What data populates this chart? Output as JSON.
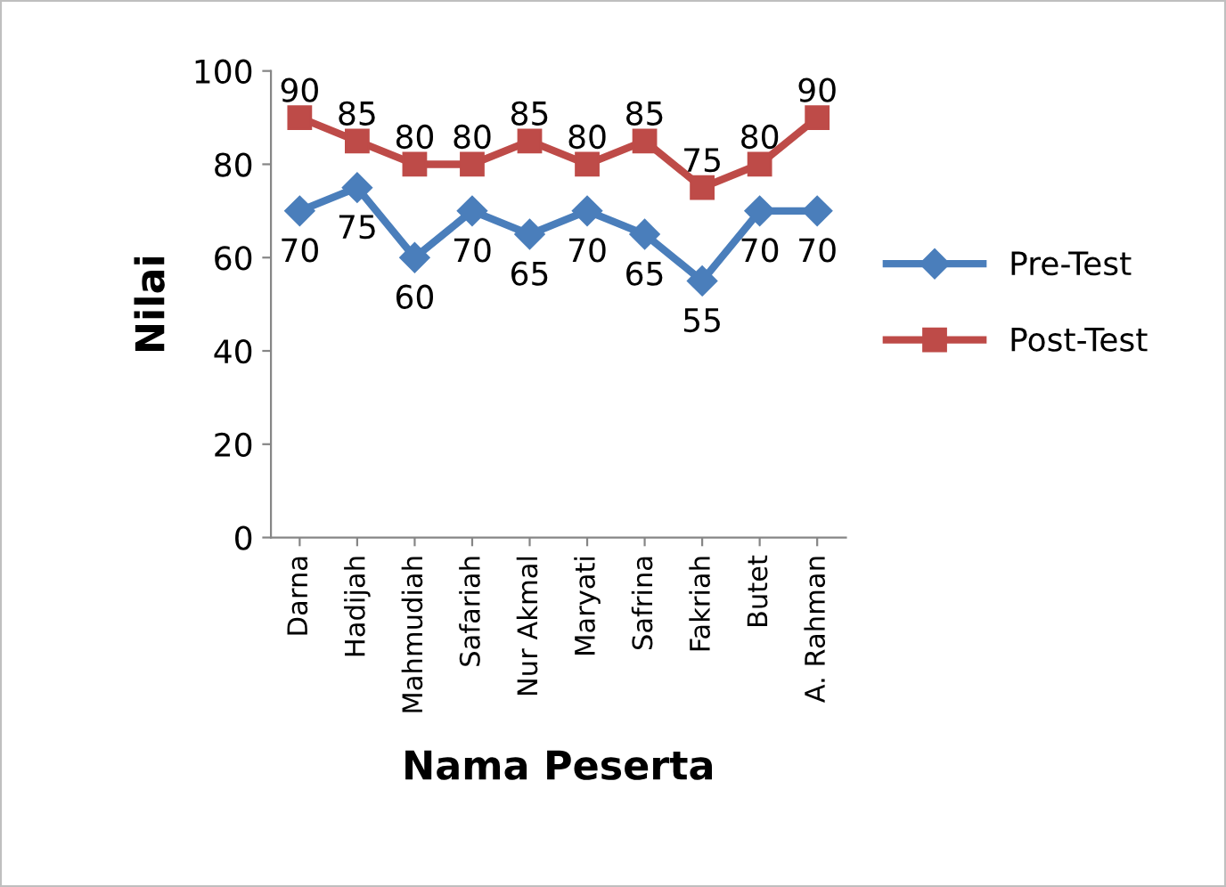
{
  "chart_data": {
    "type": "line",
    "xlabel": "Nama Peserta",
    "ylabel": "Nilai",
    "categories": [
      "Darna",
      "Hadijah",
      "Mahmudiah",
      "Safariah",
      "Nur Akmal",
      "Maryati",
      "Safrina",
      "Fakriah",
      "Butet",
      "A. Rahman"
    ],
    "series": [
      {
        "name": "Pre-Test",
        "color": "#4a7ebb",
        "marker": "diamond",
        "values": [
          70,
          75,
          60,
          70,
          65,
          70,
          65,
          55,
          70,
          70
        ]
      },
      {
        "name": "Post-Test",
        "color": "#be4b48",
        "marker": "square",
        "values": [
          90,
          85,
          80,
          80,
          85,
          80,
          85,
          75,
          80,
          90
        ]
      }
    ],
    "ylim": [
      0,
      100
    ],
    "yticks": [
      0,
      20,
      40,
      60,
      80,
      100
    ],
    "grid": false,
    "legend": "right",
    "data_labels": true,
    "line_style": "solid"
  }
}
